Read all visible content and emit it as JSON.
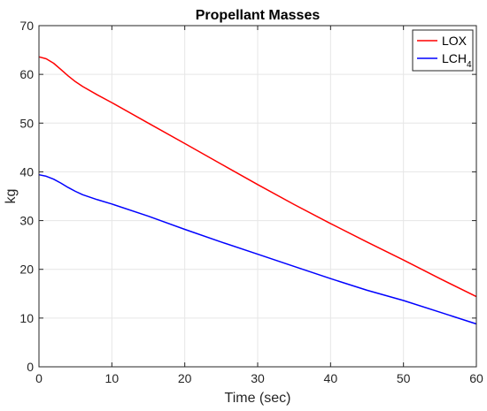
{
  "chart_data": {
    "type": "line",
    "title": "Propellant Masses",
    "xlabel": "Time (sec)",
    "ylabel": "kg",
    "xlim": [
      0,
      60
    ],
    "ylim": [
      0,
      70
    ],
    "xticks": [
      0,
      10,
      20,
      30,
      40,
      50,
      60
    ],
    "yticks": [
      0,
      10,
      20,
      30,
      40,
      50,
      60,
      70
    ],
    "grid": true,
    "legend_position": "top-right",
    "series": [
      {
        "name": "LOX",
        "color": "#ff0000",
        "x": [
          0,
          1,
          2,
          3,
          4,
          5,
          6,
          8,
          10,
          15,
          20,
          25,
          30,
          35,
          40,
          45,
          50,
          55,
          60
        ],
        "y": [
          63.6,
          63.2,
          62.3,
          61.0,
          59.7,
          58.5,
          57.5,
          55.8,
          54.2,
          50.0,
          45.8,
          41.6,
          37.4,
          33.3,
          29.4,
          25.6,
          21.9,
          18.1,
          14.4
        ]
      },
      {
        "name": "LCH",
        "name_subscript": "4",
        "color": "#0000ff",
        "x": [
          0,
          1,
          2,
          3,
          4,
          5,
          6,
          8,
          10,
          15,
          20,
          25,
          30,
          35,
          40,
          45,
          50,
          55,
          60
        ],
        "y": [
          39.4,
          39.1,
          38.5,
          37.7,
          36.8,
          36.0,
          35.3,
          34.3,
          33.4,
          30.9,
          28.2,
          25.6,
          23.1,
          20.6,
          18.1,
          15.7,
          13.6,
          11.2,
          8.8
        ]
      }
    ]
  }
}
